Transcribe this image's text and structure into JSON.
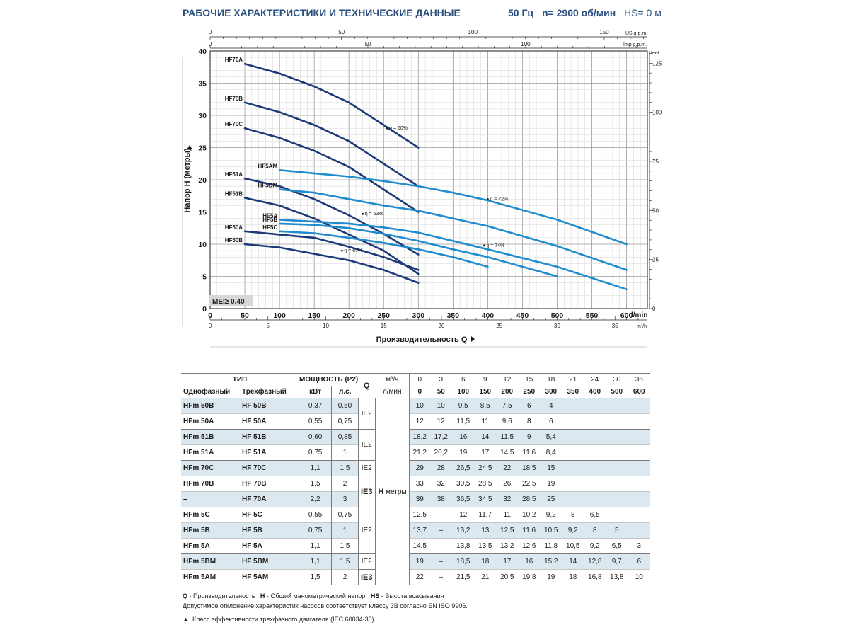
{
  "header": {
    "title": "РАБОЧИЕ ХАРАКТЕРИСТИКИ И ТЕХНИЧЕСКИЕ ДАННЫЕ",
    "freq": "50 Гц",
    "speed": "n= 2900 об/мин",
    "suction": "HS= 0 м"
  },
  "chart_data": {
    "type": "line",
    "ylabel": "Напор H (метры)",
    "xlabel": "Производительность Q",
    "x_unit": "l/min",
    "x2_unit": "m³/h",
    "us_unit": "US g.p.m.",
    "imp_unit": "Imp g.p.m.",
    "feet_unit": "feet",
    "xlim": [
      0,
      630
    ],
    "ylim": [
      0,
      40
    ],
    "grid": true,
    "x_ticks": [
      "0",
      "50",
      "100",
      "150",
      "200",
      "250",
      "300",
      "350",
      "400",
      "450",
      "500",
      "550",
      "600"
    ],
    "y_ticks": [
      "0",
      "5",
      "10",
      "15",
      "20",
      "25",
      "30",
      "35",
      "40"
    ],
    "m3h_ticks": [
      "0",
      "5",
      "10",
      "15",
      "20",
      "25",
      "30",
      "35"
    ],
    "us_ticks": [
      "0",
      "50",
      "100",
      "150"
    ],
    "imp_ticks": [
      "0",
      "50",
      "100"
    ],
    "feet_ticks": [
      "0",
      "25",
      "50",
      "75",
      "100",
      "125"
    ],
    "mei_label": "MEI≥ 0.40",
    "series": [
      {
        "name": "HF70A",
        "color": "#1d3a78",
        "x": [
          50,
          100,
          150,
          200,
          250,
          300
        ],
        "y": [
          38,
          36.5,
          34.5,
          32,
          28.5,
          25
        ]
      },
      {
        "name": "HF70B",
        "color": "#1d3a78",
        "x": [
          50,
          100,
          150,
          200,
          250,
          300
        ],
        "y": [
          32,
          30.5,
          28.5,
          26,
          22.5,
          19
        ]
      },
      {
        "name": "HF70C",
        "color": "#1d3a78",
        "x": [
          50,
          100,
          150,
          200,
          250,
          300
        ],
        "y": [
          28,
          26.5,
          24.5,
          22,
          18.5,
          15
        ]
      },
      {
        "name": "HF51A",
        "color": "#1d3a78",
        "x": [
          50,
          100,
          150,
          200,
          250,
          300
        ],
        "y": [
          20.2,
          19,
          17,
          14.5,
          11.6,
          8.4
        ]
      },
      {
        "name": "HF51B",
        "color": "#1d3a78",
        "x": [
          50,
          100,
          150,
          200,
          250,
          300
        ],
        "y": [
          17.2,
          16,
          14,
          11.5,
          9,
          5.4
        ]
      },
      {
        "name": "HF50A",
        "color": "#1d3a78",
        "x": [
          50,
          100,
          150,
          200,
          250,
          300
        ],
        "y": [
          12,
          11.5,
          11,
          9.6,
          8,
          6
        ]
      },
      {
        "name": "HF50B",
        "color": "#1d3a78",
        "x": [
          50,
          100,
          150,
          200,
          250,
          300
        ],
        "y": [
          10,
          9.5,
          8.5,
          7.5,
          6,
          4
        ]
      },
      {
        "name": "HF5AM",
        "color": "#1f8ccd",
        "x": [
          100,
          150,
          200,
          250,
          300,
          350,
          400,
          500,
          600
        ],
        "y": [
          21.5,
          21,
          20.5,
          19.8,
          19,
          18,
          16.8,
          13.8,
          10
        ]
      },
      {
        "name": "HF5BM",
        "color": "#1f8ccd",
        "x": [
          100,
          150,
          200,
          250,
          300,
          350,
          400,
          500,
          600
        ],
        "y": [
          18.5,
          18,
          17,
          16,
          15.2,
          14,
          12.8,
          9.7,
          6
        ]
      },
      {
        "name": "HF5A",
        "color": "#1f8ccd",
        "x": [
          100,
          150,
          200,
          250,
          300,
          350,
          400,
          500,
          600
        ],
        "y": [
          13.8,
          13.5,
          13.2,
          12.6,
          11.8,
          10.5,
          9.2,
          6.5,
          3
        ]
      },
      {
        "name": "HF5B",
        "color": "#1f8ccd",
        "x": [
          100,
          150,
          200,
          250,
          300,
          350,
          400,
          500
        ],
        "y": [
          13.2,
          13,
          12.5,
          11.6,
          10.5,
          9.2,
          8,
          5
        ]
      },
      {
        "name": "HF5C",
        "color": "#1f8ccd",
        "x": [
          100,
          150,
          200,
          250,
          300,
          350,
          400
        ],
        "y": [
          12,
          11.7,
          11,
          10.2,
          9.2,
          8,
          6.5
        ]
      }
    ],
    "efficiency_labels": [
      {
        "text": "η = 60%",
        "x": 255,
        "y": 28
      },
      {
        "text": "η = 63%",
        "x": 220,
        "y": 14.7
      },
      {
        "text": "η = 67%",
        "x": 190,
        "y": 9
      },
      {
        "text": "η = 72%",
        "x": 400,
        "y": 17
      },
      {
        "text": "η = 74%",
        "x": 395,
        "y": 9.8
      }
    ]
  },
  "table": {
    "h_tip": "ТИП",
    "h_power": "МОЩНОСТЬ (P2)",
    "h_q": "Q",
    "h_m3h": "м³/ч",
    "h_lmin": "л/мин",
    "h_single": "Однофазный",
    "h_three": "Трехфазный",
    "h_kw": "кВт",
    "h_hp": "л.с.",
    "h_tri": "▲",
    "h_label": "H",
    "h_unit": "метры",
    "m3h": [
      "0",
      "3",
      "6",
      "9",
      "12",
      "15",
      "18",
      "21",
      "24",
      "30",
      "36"
    ],
    "lmin": [
      "0",
      "50",
      "100",
      "150",
      "200",
      "250",
      "300",
      "350",
      "400",
      "500",
      "600"
    ],
    "rows": [
      {
        "single": "HFm 50B",
        "three": "HF 50B",
        "kw": "0,37",
        "hp": "0,50",
        "h": [
          "10",
          "10",
          "9,5",
          "8,5",
          "7,5",
          "6",
          "4",
          "",
          "",
          "",
          ""
        ]
      },
      {
        "single": "HFm 50A",
        "three": "HF 50A",
        "kw": "0,55",
        "hp": "0,75",
        "h": [
          "12",
          "12",
          "11,5",
          "11",
          "9,6",
          "8",
          "6",
          "",
          "",
          "",
          ""
        ]
      },
      {
        "single": "HFm 51B",
        "three": "HF 51B",
        "kw": "0,60",
        "hp": "0,85",
        "h": [
          "18,2",
          "17,2",
          "16",
          "14",
          "11,5",
          "9",
          "5,4",
          "",
          "",
          "",
          ""
        ]
      },
      {
        "single": "HFm 51A",
        "three": "HF 51A",
        "kw": "0,75",
        "hp": "1",
        "h": [
          "21,2",
          "20,2",
          "19",
          "17",
          "14,5",
          "11,6",
          "8,4",
          "",
          "",
          "",
          ""
        ]
      },
      {
        "single": "HFm 70C",
        "three": "HF 70C",
        "kw": "1,1",
        "hp": "1,5",
        "h": [
          "29",
          "28",
          "26,5",
          "24,5",
          "22",
          "18,5",
          "15",
          "",
          "",
          "",
          ""
        ]
      },
      {
        "single": "HFm 70B",
        "three": "HF 70B",
        "kw": "1,5",
        "hp": "2",
        "h": [
          "33",
          "32",
          "30,5",
          "28,5",
          "26",
          "22,5",
          "19",
          "",
          "",
          "",
          ""
        ]
      },
      {
        "single": "–",
        "three": "HF 70A",
        "kw": "2,2",
        "hp": "3",
        "h": [
          "39",
          "38",
          "36,5",
          "34,5",
          "32",
          "28,5",
          "25",
          "",
          "",
          "",
          ""
        ]
      },
      {
        "single": "HFm 5C",
        "three": "HF 5C",
        "kw": "0,55",
        "hp": "0,75",
        "h": [
          "12,5",
          "–",
          "12",
          "11,7",
          "11",
          "10,2",
          "9,2",
          "8",
          "6,5",
          "",
          ""
        ]
      },
      {
        "single": "HFm 5B",
        "three": "HF 5B",
        "kw": "0,75",
        "hp": "1",
        "h": [
          "13,7",
          "–",
          "13,2",
          "13",
          "12,5",
          "11,6",
          "10,5",
          "9,2",
          "8",
          "5",
          ""
        ]
      },
      {
        "single": "HFm 5A",
        "three": "HF 5A",
        "kw": "1,1",
        "hp": "1,5",
        "h": [
          "14,5",
          "–",
          "13,8",
          "13,5",
          "13,2",
          "12,6",
          "11,8",
          "10,5",
          "9,2",
          "6,5",
          "3"
        ]
      },
      {
        "single": "HFm 5BM",
        "three": "HF 5BM",
        "kw": "1,1",
        "hp": "1,5",
        "h": [
          "19",
          "–",
          "18,5",
          "18",
          "17",
          "16",
          "15,2",
          "14",
          "12,8",
          "9,7",
          "6"
        ]
      },
      {
        "single": "HFm 5AM",
        "three": "HF 5AM",
        "kw": "1,5",
        "hp": "2",
        "h": [
          "22",
          "–",
          "21,5",
          "21",
          "20,5",
          "19,8",
          "19",
          "18",
          "16,8",
          "13,8",
          "10"
        ]
      }
    ],
    "ie_groups": [
      {
        "label": "IE2",
        "bold": false
      },
      {
        "label": "IE2",
        "bold": false
      },
      {
        "label": "IE2",
        "bold": false
      },
      {
        "label": "IE3",
        "bold": true
      },
      {
        "label": "IE2",
        "bold": false
      },
      {
        "label": "IE2",
        "bold": false
      },
      {
        "label": "IE3",
        "bold": true
      }
    ]
  },
  "footnotes": {
    "q_key": "Q",
    "q_text": "- Производительность",
    "h_key": "H",
    "h_text": "- Общий манометрический напор",
    "hs_key": "HS",
    "hs_text": "- Высота всасывания",
    "tolerance": "Допустимое отклонение характеристик насосов соответствует классу 3B согласно EN ISO 9906.",
    "triangle": "▲",
    "class_note": "Класс эффективности трехфазного двигателя (IEC 60034-30)"
  }
}
